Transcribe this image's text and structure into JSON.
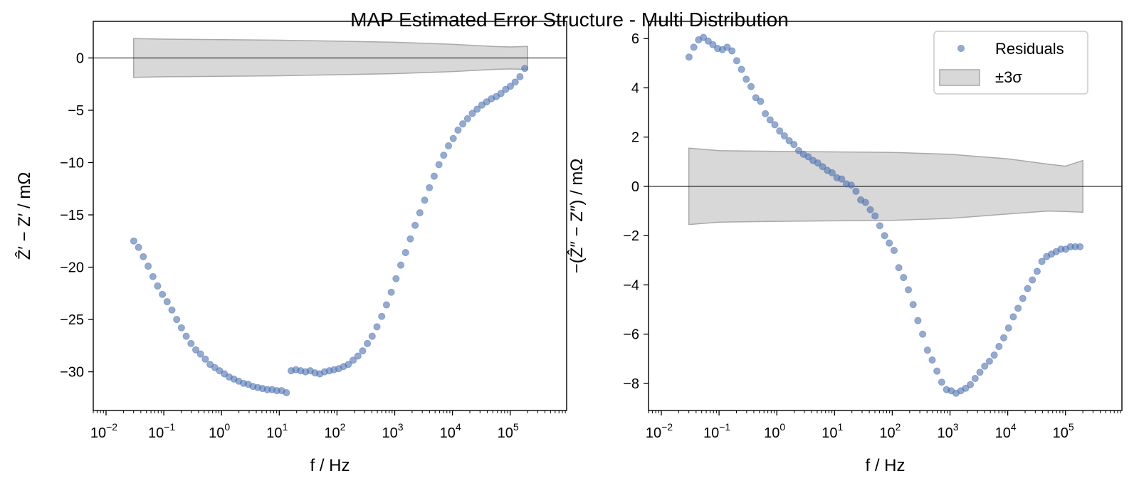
{
  "figure": {
    "title": "MAP Estimated Error Structure - Multi Distribution"
  },
  "colors": {
    "points": "#4c72b0",
    "band": "#c8c8c8",
    "axis": "#000000"
  },
  "legend": {
    "placement": "top-right",
    "items": [
      {
        "label": "Residuals",
        "kind": "point"
      },
      {
        "label": "±3σ",
        "kind": "band"
      }
    ]
  },
  "chart_data": [
    {
      "type": "scatter",
      "xscale": "log",
      "xlabel": "f / Hz",
      "ylabel": "Ẑ′ − Z′ / mΩ",
      "xlim": [
        0.006,
        950000
      ],
      "ylim": [
        -33.7,
        3.5
      ],
      "yticks": [
        0,
        -5,
        -10,
        -15,
        -20,
        -25,
        -30
      ],
      "xticks": [
        {
          "value": 0.01,
          "base": "10",
          "exp": "−2"
        },
        {
          "value": 0.1,
          "base": "10",
          "exp": "−1"
        },
        {
          "value": 1,
          "base": "10",
          "exp": "0"
        },
        {
          "value": 10,
          "base": "10",
          "exp": "1"
        },
        {
          "value": 100,
          "base": "10",
          "exp": "2"
        },
        {
          "value": 1000,
          "base": "10",
          "exp": "3"
        },
        {
          "value": 10000,
          "base": "10",
          "exp": "4"
        },
        {
          "value": 100000,
          "base": "10",
          "exp": "5"
        }
      ],
      "zero_line": true,
      "band": {
        "f": [
          0.03,
          0.1,
          1,
          10,
          100,
          1000,
          10000,
          50000,
          100000,
          200000
        ],
        "upper": [
          1.85,
          1.8,
          1.75,
          1.7,
          1.6,
          1.5,
          1.3,
          1.1,
          1.05,
          1.1
        ],
        "lower": [
          -1.85,
          -1.8,
          -1.75,
          -1.7,
          -1.6,
          -1.5,
          -1.3,
          -1.1,
          -1.05,
          -1.1
        ]
      },
      "series": [
        {
          "f": [
            0.0302,
            0.0365,
            0.0442,
            0.0535,
            0.0647,
            0.0782,
            0.0946,
            0.1144,
            0.1384,
            0.1674,
            0.2024,
            0.2448,
            0.2961,
            0.3581,
            0.4331,
            0.5238,
            0.6335,
            0.7662,
            0.9266,
            1.1207,
            1.3554,
            1.6393,
            1.9826,
            2.3978,
            2.9,
            3.5074,
            4.2419,
            5.1303,
            6.2047,
            7.5041,
            9.0757,
            10.976,
            13.275,
            16.055,
            19.418,
            23.484,
            28.402,
            34.35,
            41.544,
            50.245,
            60.768,
            73.494,
            88.885,
            107.5,
            130.01,
            157.24,
            190.17,
            230,
            278.17,
            336.42,
            406.88,
            492.09,
            595.14,
            719.78,
            870.52,
            1052.8,
            1273.3,
            1540,
            1862.5,
            2252.5,
            2724.3,
            3294.8,
            3984.8,
            4819.3,
            5828.6,
            7049.3,
            8525.6,
            10311,
            12470,
            15082,
            18240,
            22060,
            26680,
            32268,
            39025,
            47198,
            57083,
            69038,
            83496,
            100980,
            122130,
            147710,
            178640
          ],
          "y": [
            -17.5,
            -18.1,
            -19.0,
            -19.9,
            -20.9,
            -21.8,
            -22.6,
            -23.3,
            -24.1,
            -25.0,
            -25.8,
            -26.6,
            -27.3,
            -27.9,
            -28.3,
            -28.8,
            -29.3,
            -29.6,
            -29.9,
            -30.2,
            -30.5,
            -30.7,
            -30.9,
            -31.1,
            -31.2,
            -31.4,
            -31.5,
            -31.6,
            -31.7,
            -31.7,
            -31.8,
            -31.8,
            -32.0,
            -29.9,
            -29.8,
            -29.9,
            -30.0,
            -29.9,
            -30.1,
            -30.2,
            -30.0,
            -29.9,
            -29.8,
            -29.7,
            -29.5,
            -29.3,
            -28.9,
            -28.5,
            -28.0,
            -27.3,
            -26.6,
            -25.7,
            -24.7,
            -23.6,
            -22.4,
            -21.1,
            -19.8,
            -18.6,
            -17.3,
            -16.0,
            -14.8,
            -13.6,
            -12.4,
            -11.3,
            -10.2,
            -9.3,
            -8.4,
            -7.7,
            -6.9,
            -6.3,
            -5.8,
            -5.3,
            -4.9,
            -4.5,
            -4.2,
            -3.9,
            -3.7,
            -3.4,
            -3.0,
            -2.7,
            -2.3,
            -1.8,
            -1.0
          ]
        }
      ]
    },
    {
      "type": "scatter",
      "xscale": "log",
      "xlabel": "f / Hz",
      "ylabel": "−(Ẑ″ − Z″) / mΩ",
      "xlim": [
        0.006,
        950000
      ],
      "ylim": [
        -9.1,
        6.7
      ],
      "yticks": [
        6,
        4,
        2,
        0,
        -2,
        -4,
        -6,
        -8
      ],
      "xticks": [
        {
          "value": 0.01,
          "base": "10",
          "exp": "−2"
        },
        {
          "value": 0.1,
          "base": "10",
          "exp": "−1"
        },
        {
          "value": 1,
          "base": "10",
          "exp": "0"
        },
        {
          "value": 10,
          "base": "10",
          "exp": "1"
        },
        {
          "value": 100,
          "base": "10",
          "exp": "2"
        },
        {
          "value": 1000,
          "base": "10",
          "exp": "3"
        },
        {
          "value": 10000,
          "base": "10",
          "exp": "4"
        },
        {
          "value": 100000,
          "base": "10",
          "exp": "5"
        }
      ],
      "zero_line": true,
      "band": {
        "f": [
          0.03,
          0.1,
          1,
          10,
          100,
          1000,
          10000,
          50000,
          100000,
          200000
        ],
        "upper": [
          1.55,
          1.45,
          1.42,
          1.4,
          1.38,
          1.3,
          1.12,
          0.9,
          0.82,
          1.05
        ],
        "lower": [
          -1.55,
          -1.45,
          -1.42,
          -1.4,
          -1.38,
          -1.3,
          -1.12,
          -1.0,
          -1.02,
          -1.05
        ]
      },
      "series": [
        {
          "name": "Residuals",
          "f": [
            0.0302,
            0.0365,
            0.0442,
            0.0535,
            0.0647,
            0.0782,
            0.0946,
            0.1144,
            0.1384,
            0.1674,
            0.2024,
            0.2448,
            0.2961,
            0.3581,
            0.4331,
            0.5238,
            0.6335,
            0.7662,
            0.9266,
            1.1207,
            1.3554,
            1.6393,
            1.9826,
            2.3978,
            2.9,
            3.5074,
            4.2419,
            5.1303,
            6.2047,
            7.5041,
            9.0757,
            10.976,
            13.275,
            16.055,
            19.418,
            23.484,
            28.402,
            34.35,
            41.544,
            50.245,
            60.768,
            73.494,
            88.885,
            107.5,
            130.01,
            157.24,
            190.17,
            230,
            278.17,
            336.42,
            406.88,
            492.09,
            595.14,
            719.78,
            870.52,
            1052.8,
            1273.3,
            1540,
            1862.5,
            2252.5,
            2724.3,
            3294.8,
            3984.8,
            4819.3,
            5828.6,
            7049.3,
            8525.6,
            10311,
            12470,
            15082,
            18240,
            22060,
            26680,
            32268,
            39025,
            47198,
            57083,
            69038,
            83496,
            100980,
            122130,
            147710,
            178640
          ],
          "y": [
            5.25,
            5.65,
            5.95,
            6.05,
            5.9,
            5.75,
            5.6,
            5.55,
            5.65,
            5.5,
            5.1,
            4.75,
            4.35,
            4.05,
            3.6,
            3.45,
            2.95,
            2.7,
            2.5,
            2.25,
            2.05,
            1.85,
            1.7,
            1.45,
            1.3,
            1.2,
            1.05,
            0.95,
            0.8,
            0.65,
            0.55,
            0.35,
            0.3,
            0.1,
            0.05,
            -0.2,
            -0.55,
            -0.65,
            -0.95,
            -1.2,
            -1.6,
            -2.0,
            -2.3,
            -2.6,
            -3.3,
            -3.7,
            -4.2,
            -4.8,
            -5.45,
            -6.0,
            -6.65,
            -7.05,
            -7.5,
            -7.95,
            -8.25,
            -8.3,
            -8.4,
            -8.3,
            -8.2,
            -8.05,
            -7.8,
            -7.55,
            -7.3,
            -7.1,
            -6.85,
            -6.5,
            -6.15,
            -5.75,
            -5.3,
            -4.95,
            -4.55,
            -4.15,
            -3.8,
            -3.45,
            -3.05,
            -2.85,
            -2.75,
            -2.65,
            -2.55,
            -2.55,
            -2.45,
            -2.45,
            -2.45
          ]
        }
      ]
    }
  ]
}
